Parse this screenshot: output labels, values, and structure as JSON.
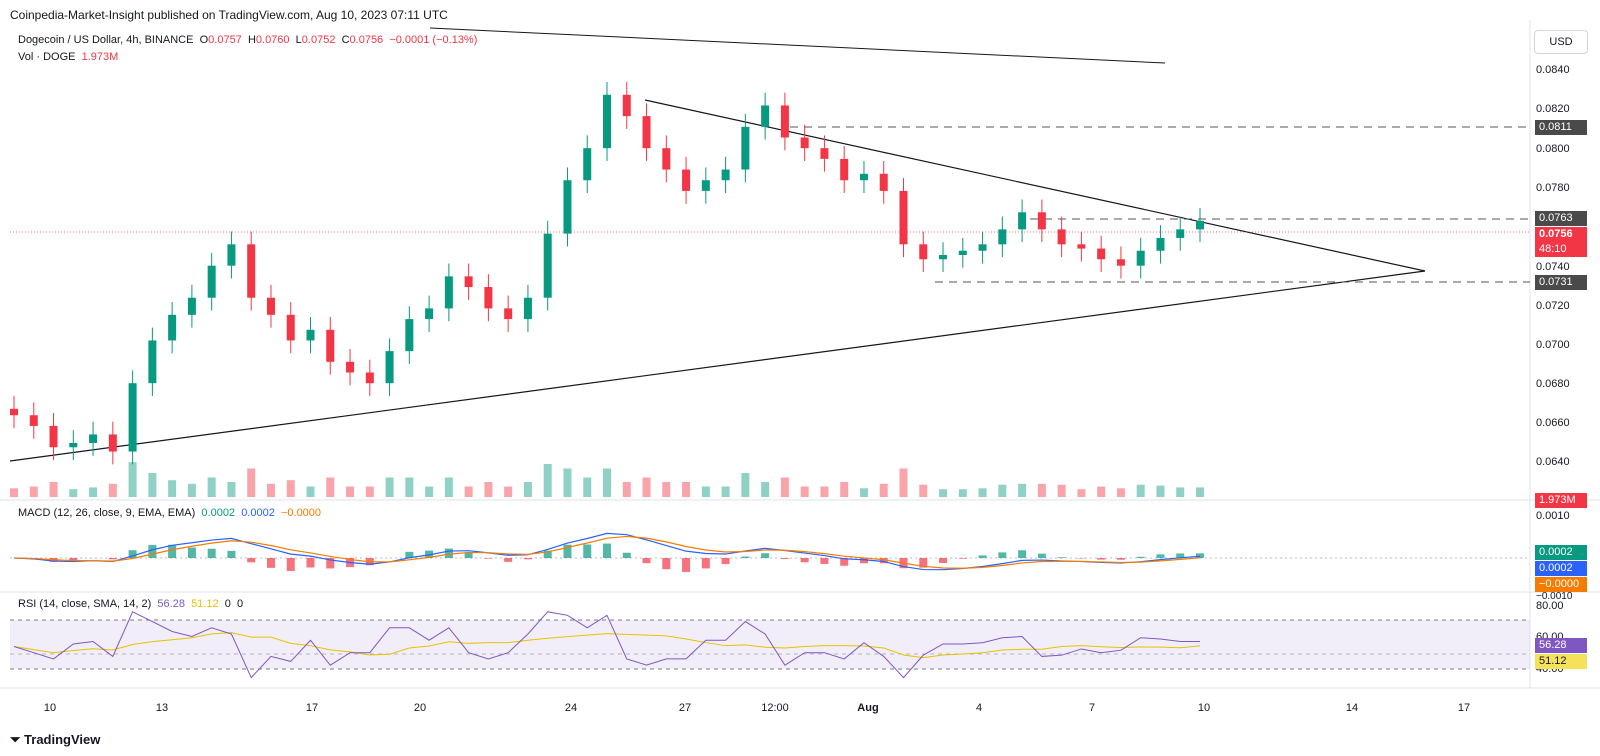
{
  "header": "Coinpedia-Market-Insight published on TradingView.com, Aug 10, 2023 07:11 UTC",
  "symbol": {
    "title": "Dogecoin / US Dollar, 4h, BINANCE",
    "open_label": "O",
    "open": "0.0757",
    "high_label": "H",
    "high": "0.0760",
    "low_label": "L",
    "low": "0.0752",
    "close_label": "C",
    "close": "0.0756",
    "change": "−0.0001 (−0.13%)"
  },
  "volume": {
    "label": "Vol · DOGE",
    "value": "1.973M"
  },
  "macd": {
    "label": "MACD (12, 26, close, 9, EMA, EMA)",
    "hist": "0.0002",
    "macd": "0.0002",
    "signal": "−0.0000"
  },
  "rsi": {
    "label": "RSI (14, close, SMA, 14, 2)",
    "rsi": "56.28",
    "sma": "51.12",
    "extra1": "0",
    "extra2": "0"
  },
  "currency_button": "USD",
  "price_axis": [
    "0.0840",
    "0.0820",
    "0.0800",
    "0.0780",
    "0.0740",
    "0.0720",
    "0.0700",
    "0.0680",
    "0.0660",
    "0.0640"
  ],
  "price_badges": {
    "resistance": "0.0811",
    "upper": "0.0763",
    "current": "0.0756",
    "countdown": "48:10",
    "support": "0.0731",
    "volume": "1.973M"
  },
  "macd_axis": [
    "0.0010",
    "−0.0010"
  ],
  "macd_badges": {
    "hist": "0.0002",
    "macd": "0.0002",
    "signal": "−0.0000"
  },
  "rsi_axis": [
    "80.00",
    "60.00",
    "40.00"
  ],
  "rsi_badges": {
    "rsi": "56.28",
    "sma": "51.12"
  },
  "time_axis": [
    "10",
    "13",
    "17",
    "20",
    "24",
    "27",
    "12:00",
    "Aug",
    "4",
    "7",
    "10",
    "14",
    "17"
  ],
  "brand": "TradingView",
  "colors": {
    "up": "#089981",
    "down": "#f23645",
    "macd": "#2962ff",
    "signal": "#f57c00",
    "rsi": "#7e57c2",
    "rsi_sma": "#e6c200"
  },
  "chart_data": {
    "type": "candlestick",
    "ylim": [
      0.063,
      0.085
    ],
    "levels": {
      "resistance": 0.0811,
      "range_top": 0.0763,
      "range_bottom": 0.0731,
      "last_price": 0.0756
    },
    "series": [
      {
        "name": "close",
        "values": [
          0.0665,
          0.066,
          0.065,
          0.0652,
          0.0656,
          0.0648,
          0.068,
          0.07,
          0.0712,
          0.072,
          0.0735,
          0.0745,
          0.072,
          0.0712,
          0.07,
          0.0705,
          0.069,
          0.0685,
          0.068,
          0.0695,
          0.071,
          0.0715,
          0.073,
          0.0725,
          0.0715,
          0.071,
          0.072,
          0.075,
          0.0775,
          0.079,
          0.0815,
          0.0805,
          0.079,
          0.078,
          0.077,
          0.0775,
          0.078,
          0.08,
          0.081,
          0.0795,
          0.079,
          0.0785,
          0.0775,
          0.0778,
          0.077,
          0.0745,
          0.0738,
          0.074,
          0.0742,
          0.0745,
          0.0752,
          0.076,
          0.0752,
          0.0745,
          0.0743,
          0.0738,
          0.0735,
          0.0742,
          0.0748,
          0.0752,
          0.0756
        ]
      }
    ]
  }
}
